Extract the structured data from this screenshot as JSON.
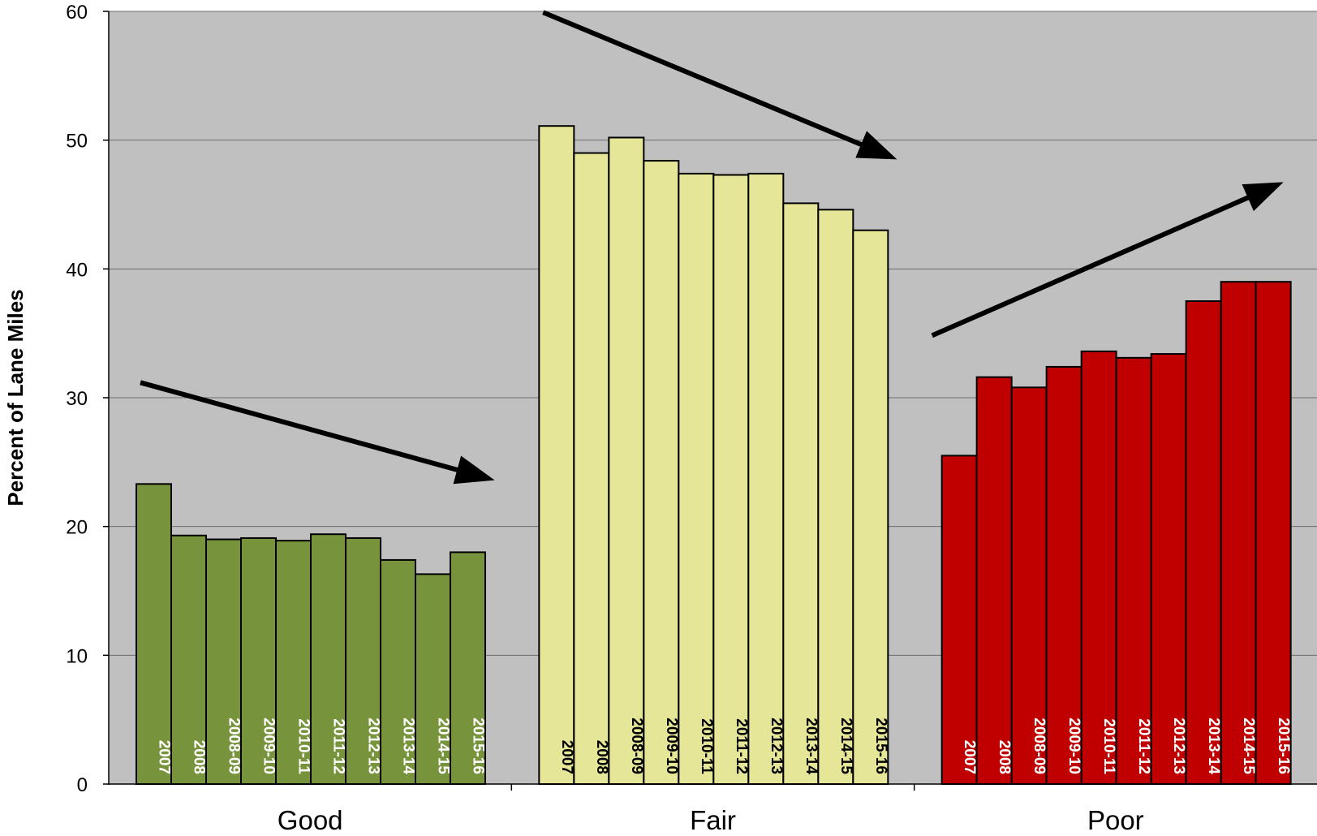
{
  "chart_data": {
    "type": "bar",
    "title": "",
    "ylabel": "Percent of Lane Miles",
    "xlabel": "",
    "ylim": [
      0,
      60
    ],
    "yticks": [
      0,
      10,
      20,
      30,
      40,
      50,
      60
    ],
    "grid": true,
    "plot_background": "#c0c0c0",
    "groups": [
      {
        "name": "Good",
        "color": "#77933c",
        "label_color": "#ffffff",
        "trend": "down",
        "categories": [
          "2007",
          "2008",
          "2008-09",
          "2009-10",
          "2010-11",
          "2011-12",
          "2012-13",
          "2013-14",
          "2014-15",
          "2015-16"
        ],
        "values": [
          23.3,
          19.3,
          19.0,
          19.1,
          18.9,
          19.4,
          19.1,
          17.4,
          16.3,
          18.0
        ]
      },
      {
        "name": "Fair",
        "color": "#e6e699",
        "label_color": "#000000",
        "trend": "down",
        "categories": [
          "2007",
          "2008",
          "2008-09",
          "2009-10",
          "2010-11",
          "2011-12",
          "2012-13",
          "2013-14",
          "2014-15",
          "2015-16"
        ],
        "values": [
          51.1,
          49.0,
          50.2,
          48.4,
          47.4,
          47.3,
          47.4,
          45.1,
          44.6,
          43.0
        ]
      },
      {
        "name": "Poor",
        "color": "#c00000",
        "label_color": "#ffffff",
        "trend": "up",
        "categories": [
          "2007",
          "2008",
          "2008-09",
          "2009-10",
          "2010-11",
          "2011-12",
          "2012-13",
          "2013-14",
          "2014-15",
          "2015-16"
        ],
        "values": [
          25.5,
          31.6,
          30.8,
          32.4,
          33.6,
          33.1,
          33.4,
          37.5,
          39.0,
          39.0
        ]
      }
    ]
  }
}
